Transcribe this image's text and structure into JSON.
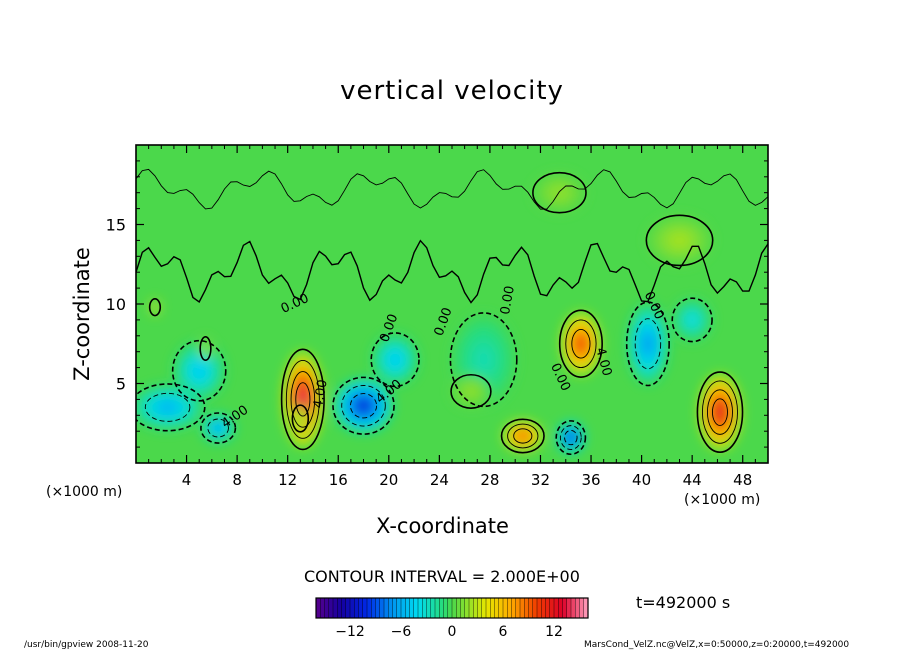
{
  "chart_data": {
    "type": "heatmap",
    "title": "vertical velocity",
    "xlabel": "X-coordinate",
    "ylabel": "Z-coordinate",
    "x_unit_left": "(×1000 m)",
    "x_unit_right": "(×1000 m)",
    "xlim": [
      0,
      50
    ],
    "ylim": [
      0,
      20
    ],
    "x_ticks": [
      4,
      8,
      12,
      16,
      20,
      24,
      28,
      32,
      36,
      40,
      44,
      48
    ],
    "y_ticks": [
      5,
      10,
      15
    ],
    "contour_interval_text": "CONTOUR INTERVAL = 2.000E+00",
    "time_text": "t=492000 s",
    "contour_labels": [
      {
        "text": "0.00",
        "x": 12.7,
        "y": 9.8,
        "angle": -25
      },
      {
        "text": "0.00",
        "x": 20.3,
        "y": 8.4,
        "angle": -70
      },
      {
        "text": "0.00",
        "x": 24.6,
        "y": 8.8,
        "angle": -70
      },
      {
        "text": "0.00",
        "x": 29.7,
        "y": 10.2,
        "angle": -80
      },
      {
        "text": "0.00",
        "x": 33.3,
        "y": 5.3,
        "angle": 65
      },
      {
        "text": "0.00",
        "x": 40.7,
        "y": 9.8,
        "angle": 65
      },
      {
        "text": "4.00",
        "x": 36.7,
        "y": 6.3,
        "angle": 75
      },
      {
        "text": "4.00",
        "x": 14.9,
        "y": 4.3,
        "angle": -80
      },
      {
        "text": "4.00",
        "x": 20.2,
        "y": 4.3,
        "angle": -40
      },
      {
        "text": "4.00",
        "x": 8.0,
        "y": 2.7,
        "angle": -35
      }
    ],
    "cells": [
      {
        "x": 1.5,
        "z": 9.8,
        "w": 0.4,
        "r": 0.5,
        "v": 5.5
      },
      {
        "x": 2.5,
        "z": 3.5,
        "w": 2.8,
        "r": 1.4,
        "v": -6
      },
      {
        "x": 6.5,
        "z": 2.2,
        "w": 1.3,
        "r": 0.9,
        "v": -7
      },
      {
        "x": 5.0,
        "z": 5.8,
        "w": 2.0,
        "r": 1.8,
        "v": -5
      },
      {
        "x": 5.5,
        "z": 7.2,
        "w": 0.4,
        "r": 0.7,
        "v": 3
      },
      {
        "x": 13.2,
        "z": 4.0,
        "w": 1.6,
        "r": 3.0,
        "v": 14
      },
      {
        "x": 13.0,
        "z": 2.8,
        "w": 0.6,
        "r": 0.8,
        "v": 4
      },
      {
        "x": 18.0,
        "z": 3.6,
        "w": 2.3,
        "r": 1.7,
        "v": -11
      },
      {
        "x": 20.5,
        "z": 6.5,
        "w": 1.8,
        "r": 1.6,
        "v": -5
      },
      {
        "x": 30.6,
        "z": 1.7,
        "w": 1.6,
        "r": 1.0,
        "v": 10
      },
      {
        "x": 34.4,
        "z": 1.6,
        "w": 1.1,
        "r": 1.0,
        "v": -11
      },
      {
        "x": 35.2,
        "z": 7.5,
        "w": 1.6,
        "r": 2.0,
        "v": 11
      },
      {
        "x": 40.5,
        "z": 7.5,
        "w": 1.6,
        "r": 2.5,
        "v": -7
      },
      {
        "x": 46.2,
        "z": 3.2,
        "w": 1.7,
        "r": 2.4,
        "v": 13
      },
      {
        "x": 27.5,
        "z": 6.5,
        "w": 2.5,
        "r": 2.8,
        "v": -2.5
      },
      {
        "x": 26.5,
        "z": 4.5,
        "w": 1.5,
        "r": 1.0,
        "v": 2
      },
      {
        "x": 44.0,
        "z": 9.0,
        "w": 1.5,
        "r": 1.3,
        "v": -4
      },
      {
        "x": 43.0,
        "z": 14.0,
        "w": 2.5,
        "r": 1.5,
        "v": 2.5
      },
      {
        "x": 33.5,
        "z": 17.0,
        "w": 2.0,
        "r": 1.2,
        "v": 2
      }
    ]
  },
  "colorbar": {
    "ticks": [
      "−12",
      "−6",
      "0",
      "6",
      "12"
    ],
    "tick_values": [
      -12,
      -6,
      0,
      6,
      12
    ],
    "range": [
      -16,
      16
    ]
  },
  "footer": {
    "left": "/usr/bin/gpview   2008-11-20",
    "right": "MarsCond_VelZ.nc@VelZ,x=0:50000,z=0:20000,t=492000"
  }
}
